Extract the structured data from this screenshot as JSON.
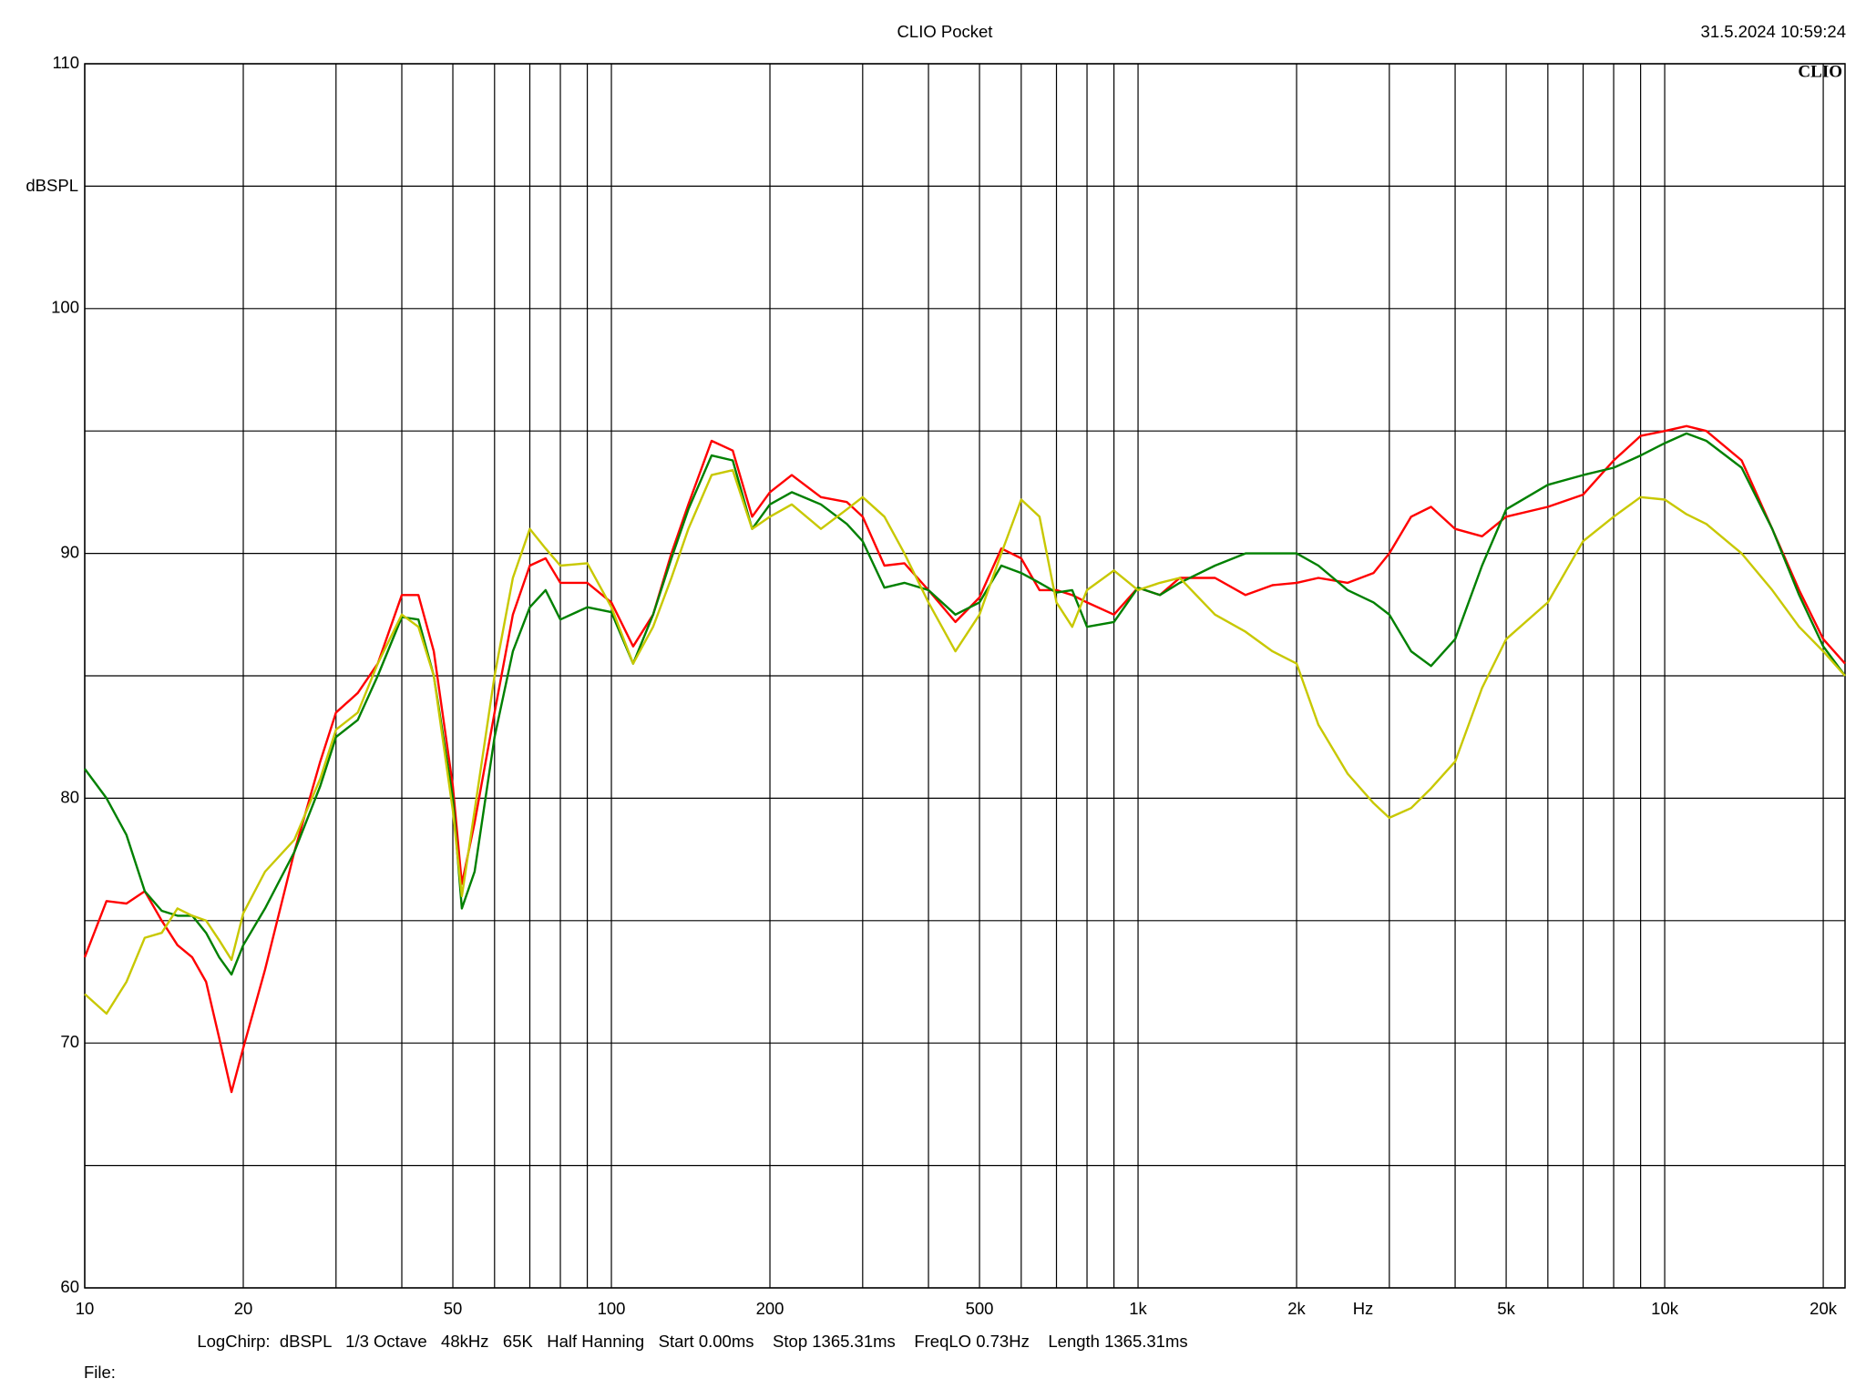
{
  "chart_data": {
    "type": "line",
    "title": "CLIO Pocket",
    "timestamp": "31.5.2024 10:59:24",
    "logo": "CLIO",
    "x_label": "Hz",
    "y_label": "dBSPL",
    "footer": "LogChirp:  dBSPL   1/3 Octave   48kHz   65K   Half Hanning   Start 0.00ms    Stop 1365.31ms    FreqLO 0.73Hz    Length 1365.31ms",
    "file_label": "File:",
    "x_log": true,
    "grid": true,
    "xlim": [
      10,
      22000
    ],
    "ylim": [
      60,
      110
    ],
    "xticks": [
      10,
      20,
      50,
      100,
      200,
      500,
      {
        "value": 1000,
        "label": "1k"
      },
      {
        "value": 2000,
        "label": "2k"
      },
      {
        "value": 5000,
        "label": "5k"
      },
      {
        "value": 10000,
        "label": "10k"
      },
      {
        "value": 20000,
        "label": "20k"
      }
    ],
    "x_minor_ticks": [
      30,
      40,
      60,
      70,
      80,
      90,
      300,
      400,
      600,
      700,
      800,
      900,
      3000,
      4000,
      6000,
      7000,
      8000,
      9000
    ],
    "yticks": [
      60,
      70,
      80,
      90,
      100,
      110
    ],
    "y_minor_ticks": [
      65,
      75,
      85,
      95,
      105
    ],
    "x": [
      10,
      11,
      12,
      13,
      14,
      15,
      16,
      17,
      18,
      19,
      20,
      22,
      25,
      28,
      30,
      33,
      36,
      40,
      43,
      46,
      50,
      52,
      55,
      60,
      65,
      70,
      75,
      80,
      90,
      100,
      110,
      120,
      130,
      140,
      155,
      170,
      185,
      200,
      220,
      250,
      280,
      300,
      330,
      360,
      400,
      450,
      500,
      550,
      600,
      650,
      700,
      750,
      800,
      900,
      1000,
      1100,
      1200,
      1400,
      1600,
      1800,
      2000,
      2200,
      2500,
      2800,
      3000,
      3300,
      3600,
      4000,
      4500,
      5000,
      6000,
      7000,
      8000,
      9000,
      10000,
      11000,
      12000,
      14000,
      16000,
      18000,
      20000,
      22000
    ],
    "series": [
      {
        "color": "#ff0000",
        "values": [
          73.5,
          75.8,
          75.7,
          76.2,
          75.0,
          74.0,
          73.5,
          72.5,
          70.2,
          68.0,
          69.8,
          73.0,
          77.8,
          81.5,
          83.5,
          84.3,
          85.5,
          88.3,
          88.3,
          86.0,
          80.5,
          76.5,
          79.0,
          83.5,
          87.5,
          89.5,
          89.8,
          88.8,
          88.8,
          88.0,
          86.2,
          87.5,
          90.0,
          92.0,
          94.6,
          94.2,
          91.5,
          92.5,
          93.2,
          92.3,
          92.1,
          91.5,
          89.5,
          89.6,
          88.5,
          87.2,
          88.2,
          90.2,
          89.8,
          88.5,
          88.5,
          88.3,
          88.0,
          87.5,
          88.6,
          88.3,
          89.0,
          89.0,
          88.3,
          88.7,
          88.8,
          89.0,
          88.8,
          89.2,
          90.0,
          91.5,
          91.9,
          91.0,
          90.7,
          91.5,
          91.9,
          92.4,
          93.8,
          94.8,
          95.0,
          95.2,
          95.0,
          93.8,
          91.0,
          88.5,
          86.5,
          85.5
        ]
      },
      {
        "color": "#008000",
        "values": [
          81.2,
          80.0,
          78.5,
          76.2,
          75.4,
          75.2,
          75.2,
          74.5,
          73.5,
          72.8,
          74.0,
          75.5,
          77.8,
          80.5,
          82.5,
          83.2,
          85.0,
          87.4,
          87.3,
          85.0,
          80.0,
          75.5,
          77.0,
          82.5,
          86.0,
          87.8,
          88.5,
          87.3,
          87.8,
          87.6,
          85.5,
          87.5,
          89.8,
          91.8,
          94.0,
          93.8,
          91.0,
          92.0,
          92.5,
          92.0,
          91.2,
          90.5,
          88.6,
          88.8,
          88.5,
          87.5,
          88.0,
          89.5,
          89.2,
          88.8,
          88.4,
          88.5,
          87.0,
          87.2,
          88.6,
          88.3,
          88.8,
          89.5,
          90.0,
          90.0,
          90.0,
          89.5,
          88.5,
          88.0,
          87.5,
          86.0,
          85.4,
          86.5,
          89.5,
          91.8,
          92.8,
          93.2,
          93.5,
          94.0,
          94.5,
          94.9,
          94.6,
          93.5,
          91.0,
          88.3,
          86.2,
          85.0
        ]
      },
      {
        "color": "#c8c800",
        "values": [
          72.0,
          71.2,
          72.5,
          74.3,
          74.5,
          75.5,
          75.2,
          75.0,
          74.2,
          73.4,
          75.3,
          77.0,
          78.3,
          80.8,
          82.8,
          83.5,
          85.5,
          87.5,
          87.0,
          85.0,
          79.5,
          76.0,
          79.5,
          85.0,
          89.0,
          91.0,
          90.2,
          89.5,
          89.6,
          87.8,
          85.5,
          87.0,
          89.0,
          91.0,
          93.2,
          93.4,
          91.0,
          91.5,
          92.0,
          91.0,
          91.8,
          92.3,
          91.5,
          90.0,
          88.0,
          86.0,
          87.5,
          90.0,
          92.2,
          91.5,
          88.0,
          87.0,
          88.5,
          89.3,
          88.5,
          88.8,
          89.0,
          87.5,
          86.8,
          86.0,
          85.5,
          83.0,
          81.0,
          79.8,
          79.2,
          79.6,
          80.4,
          81.5,
          84.5,
          86.5,
          88.0,
          90.5,
          91.5,
          92.3,
          92.2,
          91.6,
          91.2,
          90.0,
          88.5,
          87.0,
          86.0,
          85.0
        ]
      }
    ]
  }
}
